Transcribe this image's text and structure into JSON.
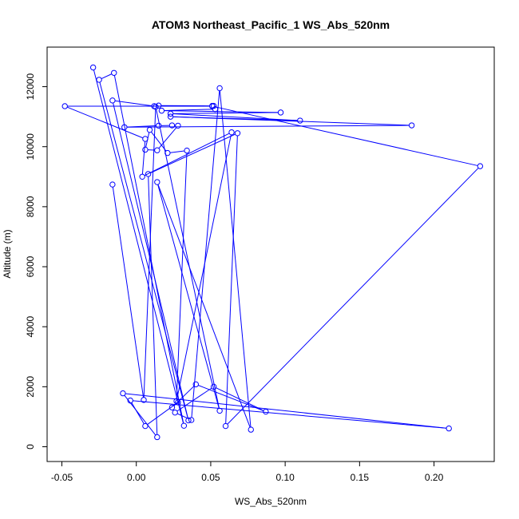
{
  "chart_data": {
    "type": "line",
    "title": "ATOM3 Northeast_Pacific_1 WS_Abs_520nm",
    "xlabel": "WS_Abs_520nm",
    "ylabel": "Altitude (m)",
    "xlim": [
      -0.05,
      0.23
    ],
    "ylim": [
      0,
      12500
    ],
    "x_ticks": [
      -0.05,
      0.0,
      0.05,
      0.1,
      0.15,
      0.2
    ],
    "x_tick_labels": [
      "-0.05",
      "0.00",
      "0.05",
      "0.10",
      "0.15",
      "0.20"
    ],
    "y_ticks": [
      0,
      2000,
      4000,
      6000,
      8000,
      10000,
      12000
    ],
    "y_tick_labels": [
      "0",
      "2000",
      "4000",
      "6000",
      "8000",
      "10000",
      "12000"
    ],
    "series_color": "#0000ff",
    "marker": "open-circle",
    "x": [
      -0.029,
      0.032,
      -0.015,
      -0.025,
      0.035,
      -0.016,
      0.012,
      0.015,
      0.051,
      0.052,
      0.053,
      0.017,
      0.097,
      0.023,
      0.11,
      0.023,
      0.185,
      -0.008,
      0.015,
      0.024,
      0.028,
      0.014,
      0.006,
      0.009,
      0.021,
      0.034,
      0.027,
      0.064,
      0.004,
      0.006,
      -0.048,
      0.051,
      0.231,
      0.06,
      0.068,
      0.008,
      0.014,
      -0.009,
      0.21,
      -0.004,
      0.006,
      0.028,
      0.024,
      0.04,
      0.087,
      0.052,
      0.026,
      0.037,
      0.056,
      0.077,
      0.014,
      0.056,
      0.013,
      0.005,
      -0.016
    ],
    "y": [
      12640,
      700,
      12460,
      12230,
      880,
      11540,
      11350,
      11370,
      11360,
      11360,
      11250,
      11200,
      11140,
      11100,
      10870,
      11000,
      10710,
      10650,
      10700,
      10710,
      10700,
      9880,
      9900,
      10560,
      9790,
      9870,
      1520,
      10480,
      9000,
      10260,
      11350,
      11350,
      9350,
      690,
      10450,
      9090,
      320,
      1780,
      610,
      1540,
      690,
      1480,
      1310,
      2080,
      1170,
      2000,
      1140,
      890,
      11950,
      570,
      8820,
      1200,
      11330,
      1560,
      8740
    ]
  }
}
